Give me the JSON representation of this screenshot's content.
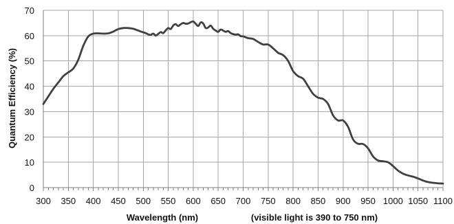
{
  "chart_data": {
    "type": "line",
    "xlabel": "Wavelength (nm)",
    "xlabel_note": "(visible light is 390 to 750 nm)",
    "ylabel": "Quantum Efficiency (%)",
    "xlim": [
      300,
      1100
    ],
    "ylim": [
      0,
      70
    ],
    "x_ticks": [
      300,
      350,
      400,
      450,
      500,
      550,
      600,
      650,
      700,
      750,
      800,
      850,
      900,
      950,
      1000,
      1050,
      1100
    ],
    "y_ticks": [
      0,
      10,
      20,
      30,
      40,
      50,
      60,
      70
    ],
    "grid": true,
    "line_color": "#404040",
    "series": [
      {
        "x": [
          300,
          310,
          320,
          330,
          340,
          350,
          360,
          370,
          380,
          390,
          400,
          410,
          420,
          430,
          440,
          450,
          460,
          470,
          480,
          490,
          500,
          505,
          510,
          515,
          520,
          525,
          530,
          535,
          540,
          545,
          550,
          555,
          560,
          565,
          570,
          575,
          580,
          585,
          590,
          595,
          600,
          605,
          610,
          615,
          620,
          625,
          630,
          635,
          640,
          645,
          650,
          655,
          660,
          665,
          670,
          675,
          680,
          685,
          690,
          695,
          700,
          710,
          720,
          730,
          740,
          750,
          760,
          770,
          780,
          790,
          800,
          810,
          820,
          830,
          840,
          850,
          860,
          870,
          880,
          890,
          900,
          910,
          920,
          930,
          940,
          950,
          960,
          970,
          980,
          990,
          1000,
          1010,
          1020,
          1030,
          1040,
          1050,
          1060,
          1070,
          1080,
          1090,
          1100
        ],
        "y": [
          33,
          36,
          39,
          41.5,
          44,
          45.5,
          47,
          50.5,
          56,
          59.7,
          60.8,
          60.9,
          60.8,
          60.9,
          61.6,
          62.6,
          63,
          63,
          62.7,
          62,
          61.3,
          61,
          60.5,
          60.3,
          60.8,
          60,
          60.7,
          61.4,
          61,
          62.1,
          63,
          62.6,
          64,
          64.5,
          63.8,
          64.5,
          65,
          64.7,
          64.8,
          65.3,
          65.6,
          64.7,
          63.8,
          65.2,
          64.8,
          63,
          63.2,
          64,
          62.7,
          62,
          61.5,
          62.4,
          62,
          61.5,
          61.8,
          61,
          60.6,
          60.4,
          60.5,
          59.8,
          59.7,
          59,
          58.7,
          57.5,
          56.5,
          56.5,
          55,
          53.2,
          52.3,
          50,
          46,
          44,
          43,
          40,
          37,
          35.5,
          35,
          33,
          28.5,
          26.5,
          26.5,
          24,
          19,
          17.3,
          17.2,
          15.5,
          12.3,
          10.7,
          10.4,
          10,
          8.5,
          6.7,
          5.5,
          4.8,
          4.3,
          3.6,
          2.8,
          2.2,
          1.9,
          1.7,
          1.6
        ]
      }
    ]
  }
}
